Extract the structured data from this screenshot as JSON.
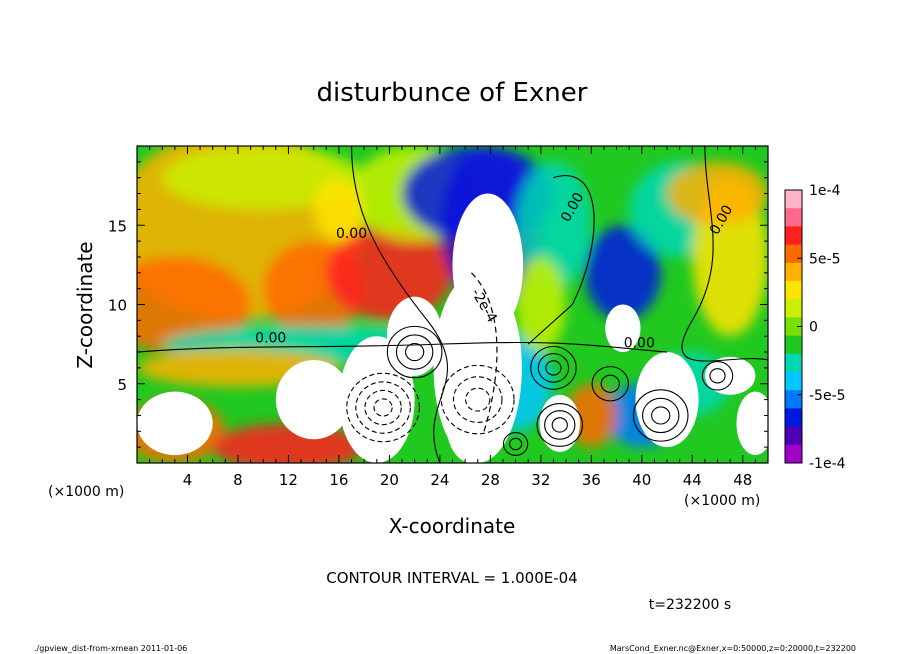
{
  "chart_data": {
    "type": "heatmap",
    "title": "disturbunce of Exner",
    "xlabel": "X-coordinate",
    "ylabel": "Z-coordinate",
    "x_unit": "(×1000 m)",
    "xlim": [
      0,
      50
    ],
    "ylim": [
      0,
      20
    ],
    "xticks": [
      4,
      8,
      12,
      16,
      20,
      24,
      28,
      32,
      36,
      40,
      44,
      48
    ],
    "yticks": [
      5,
      10,
      15
    ],
    "colorbar": {
      "vmin": -0.0001,
      "vmax": 0.0001,
      "tick_labels": [
        "1e-4",
        "5e-5",
        "0",
        "-5e-5",
        "-1e-4"
      ],
      "tick_values": [
        0.0001,
        5e-05,
        0,
        -5e-05,
        -0.0001
      ],
      "colors": [
        "#ffb4c8",
        "#ff6a8a",
        "#ff2020",
        "#ff6a00",
        "#ffb000",
        "#ffe400",
        "#c8f000",
        "#78e000",
        "#20c820",
        "#00d8b4",
        "#00c8ff",
        "#0078ff",
        "#0018e0",
        "#5000b4",
        "#a000c8"
      ]
    },
    "contour_labels": [
      {
        "text": "0.00",
        "x": 17.0,
        "z": 14.2
      },
      {
        "text": "0.00",
        "x": 34.8,
        "z": 16.0
      },
      {
        "text": "0.00",
        "x": 46.6,
        "z": 15.2
      },
      {
        "text": "0.00",
        "x": 39.8,
        "z": 7.3
      },
      {
        "text": "0.00",
        "x": 10.6,
        "z": 7.6
      },
      {
        "text": "-2e-4",
        "x": 27.2,
        "z": 9.8
      }
    ],
    "contour_interval": "CONTOUR INTERVAL = 1.000E-04",
    "time": "t=232200 s",
    "field_grid_note": "disturbance anomalies: negative columns near x=28 and x=38, positive low-level air masses"
  },
  "footer": {
    "left": "./gpview_dist-from-xmean  2011-01-06",
    "right": "MarsCond_Exner.nc@Exner,x=0:50000,z=0:20000,t=232200"
  }
}
